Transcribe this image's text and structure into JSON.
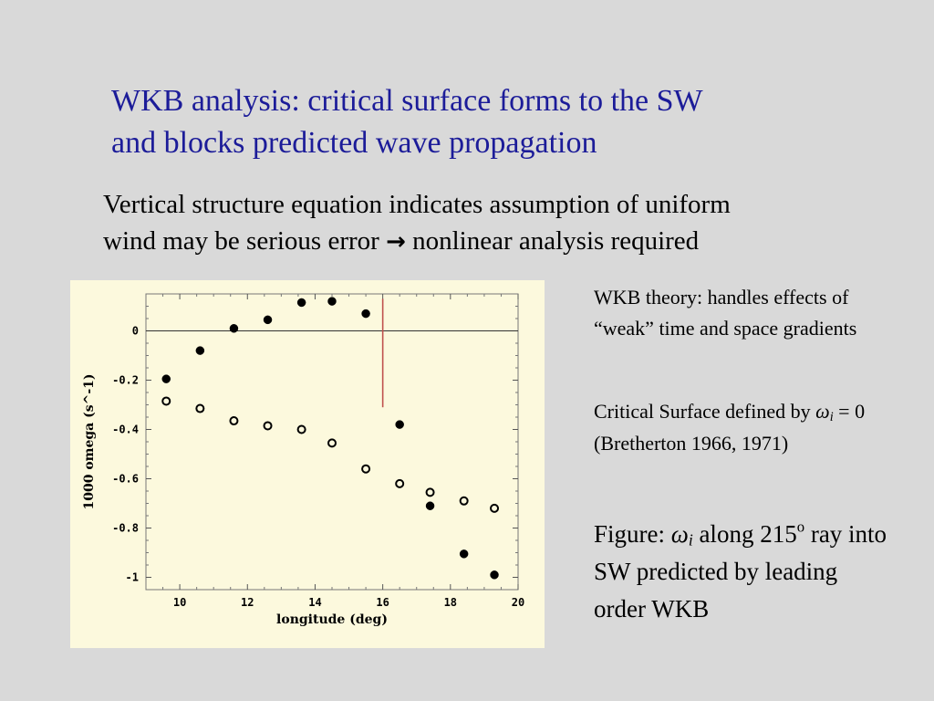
{
  "slide": {
    "title_line1": "WKB analysis: critical surface forms to the SW",
    "title_line2": "and blocks predicted wave propagation",
    "subtitle_line1": "Vertical structure equation indicates assumption of uniform",
    "subtitle_line2_a": "wind may be serious error ",
    "subtitle_arrow": "→",
    "subtitle_line2_b": " nonlinear analysis required",
    "side_note_1": "WKB theory: handles effects of “weak” time and space gradients",
    "side_note_2_a": "Critical Surface defined by ",
    "side_note_2_sym": "ω",
    "side_note_2_sub": "i",
    "side_note_2_b": " = 0 (Bretherton 1966, 1971)",
    "side_note_3_a": "Figure: ",
    "side_note_3_sym": "ω",
    "side_note_3_sub": "i",
    "side_note_3_b": " along 215",
    "side_note_3_sup": "o",
    "side_note_3_c": " ray into SW predicted by leading order WKB"
  },
  "colors": {
    "title": "#1c1c99",
    "panel": "#fcf9dd",
    "critical_line": "#c0504d"
  },
  "chart_data": {
    "type": "scatter",
    "xlabel": "longitude (deg)",
    "ylabel": "1000 omega (s^-1)",
    "xlim": [
      9.0,
      20.0
    ],
    "ylim": [
      -1.05,
      0.15
    ],
    "xticks": [
      10,
      12,
      14,
      16,
      18,
      20
    ],
    "xtick_labels": [
      "10",
      "12",
      "14",
      "16",
      "18",
      "20"
    ],
    "yticks": [
      0,
      -0.2,
      -0.4,
      -0.6,
      -0.8,
      -1
    ],
    "ytick_labels": [
      "0",
      "-0.2",
      "-0.4",
      "-0.6",
      "-0.8",
      "-1"
    ],
    "zero_line": 0,
    "critical_line": {
      "x": 16.0,
      "y_from": -0.31,
      "y_to": 0.13
    },
    "series": [
      {
        "marker": "filled",
        "x": [
          9.6,
          10.6,
          11.6,
          12.6,
          13.6,
          14.5,
          15.5,
          16.5,
          17.4,
          18.4,
          19.3
        ],
        "y": [
          -0.195,
          -0.08,
          0.01,
          0.045,
          0.115,
          0.12,
          0.07,
          -0.38,
          -0.71,
          -0.905,
          -0.99
        ]
      },
      {
        "marker": "open",
        "x": [
          9.6,
          10.6,
          11.6,
          12.6,
          13.6,
          14.5,
          15.5,
          16.5,
          17.4,
          18.4,
          19.3
        ],
        "y": [
          -0.285,
          -0.315,
          -0.365,
          -0.385,
          -0.4,
          -0.455,
          -0.56,
          -0.62,
          -0.655,
          -0.69,
          -0.72
        ]
      }
    ]
  }
}
